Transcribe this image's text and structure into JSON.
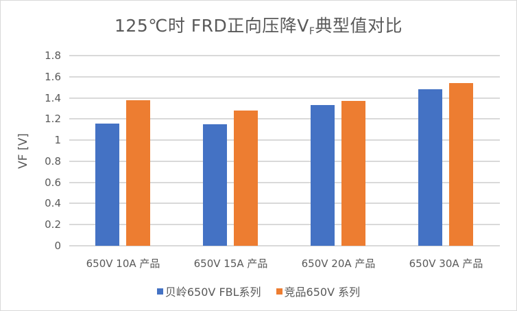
{
  "chart_data": {
    "type": "bar",
    "title": "125℃时 FRD正向压降VF典型值对比",
    "title_main": "125℃时 FRD正向压降V",
    "title_sub": "F",
    "title_tail": "典型值对比",
    "xlabel": "",
    "ylabel": "VF [V]",
    "ylim": [
      0,
      1.8
    ],
    "yticks": [
      "0",
      "0.2",
      "0.4",
      "0.6",
      "0.8",
      "1",
      "1.2",
      "1.4",
      "1.6",
      "1.8"
    ],
    "grid": true,
    "legend_position": "bottom",
    "categories": [
      "650V 10A 产品",
      "650V 15A 产品",
      "650V 20A 产品",
      "650V 30A 产品"
    ],
    "series": [
      {
        "name": "贝岭650V FBL系列",
        "color": "#4472C4",
        "values": [
          1.16,
          1.15,
          1.33,
          1.48
        ]
      },
      {
        "name": "竞品650V 系列",
        "color": "#ED7D31",
        "values": [
          1.38,
          1.28,
          1.37,
          1.54
        ]
      }
    ]
  }
}
